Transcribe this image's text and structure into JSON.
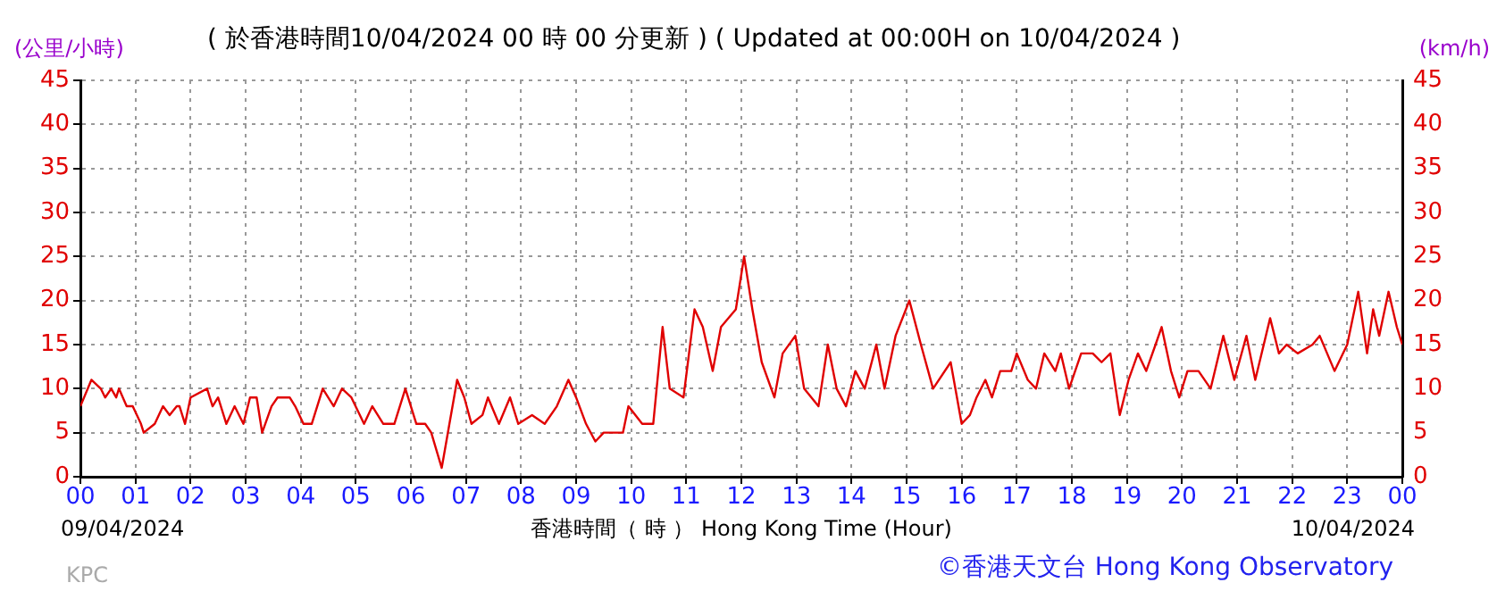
{
  "chart_data": {
    "type": "line",
    "title": "( 於香港時間10/04/2024 00 時 00 分更新 ) ( Updated at 00:00H on 10/04/2024 )",
    "xlabel": "香港時間（ 時 ） Hong Kong Time (Hour)",
    "ylabel": "(公里/小時)",
    "y2label": "(km/h)",
    "annotations": [
      "09/04/2024",
      "10/04/2024",
      "KPC",
      "©香港天文台 Hong Kong Observatory"
    ],
    "x": [
      0,
      0.2,
      0.37,
      0.45,
      0.56,
      0.65,
      0.7,
      0.84,
      0.95,
      1.1,
      1.15,
      1.35,
      1.5,
      1.62,
      1.75,
      1.8,
      1.9,
      2.0,
      2.3,
      2.4,
      2.5,
      2.65,
      2.8,
      2.96,
      3.08,
      3.2,
      3.3,
      3.47,
      3.58,
      3.8,
      3.9,
      4.05,
      4.2,
      4.4,
      4.6,
      4.75,
      4.92,
      5.15,
      5.3,
      5.5,
      5.7,
      5.9,
      6.0,
      6.1,
      6.26,
      6.37,
      6.56,
      6.7,
      6.84,
      6.97,
      7.1,
      7.3,
      7.4,
      7.6,
      7.8,
      7.95,
      8.2,
      8.43,
      8.65,
      8.86,
      9.0,
      9.18,
      9.35,
      9.5,
      9.85,
      9.95,
      10.2,
      10.4,
      10.57,
      10.7,
      10.95,
      11.15,
      11.3,
      11.48,
      11.63,
      11.9,
      12.05,
      12.2,
      12.37,
      12.6,
      12.75,
      12.98,
      13.14,
      13.4,
      13.57,
      13.73,
      13.9,
      14.07,
      14.24,
      14.45,
      14.6,
      14.8,
      15.05,
      15.26,
      15.48,
      15.8,
      16.0,
      16.15,
      16.27,
      16.43,
      16.55,
      16.7,
      16.9,
      17.0,
      17.2,
      17.35,
      17.5,
      17.7,
      17.8,
      17.95,
      18.17,
      18.38,
      18.54,
      18.7,
      18.87,
      19.03,
      19.2,
      19.35,
      19.52,
      19.63,
      19.8,
      19.95,
      20.1,
      20.3,
      20.52,
      20.75,
      20.95,
      21.17,
      21.33,
      21.6,
      21.76,
      21.9,
      22.1,
      22.37,
      22.5,
      22.77,
      23.0,
      23.2,
      23.36,
      23.47,
      23.58,
      23.75,
      23.9,
      24.0
    ],
    "series": [
      {
        "color": "#e00000",
        "values": [
          8,
          11,
          10,
          9,
          10,
          9,
          10,
          8,
          8,
          6,
          5,
          6,
          8,
          7,
          8,
          8,
          6,
          9,
          10,
          8,
          9,
          6,
          8,
          6,
          9,
          9,
          5,
          8,
          9,
          9,
          8,
          6,
          6,
          10,
          8,
          10,
          9,
          6,
          8,
          6,
          6,
          10,
          8,
          6,
          6,
          5,
          1,
          6,
          11,
          9,
          6,
          7,
          9,
          6,
          9,
          6,
          7,
          6,
          8,
          11,
          9,
          6,
          4,
          5,
          5,
          8,
          6,
          6,
          17,
          10,
          9,
          19,
          17,
          12,
          17,
          19,
          25,
          19,
          13,
          9,
          14,
          16,
          10,
          8,
          15,
          10,
          8,
          12,
          10,
          15,
          10,
          16,
          20,
          15,
          10,
          13,
          6,
          7,
          9,
          11,
          9,
          12,
          12,
          14,
          11,
          10,
          14,
          12,
          14,
          10,
          14,
          14,
          13,
          14,
          7,
          11,
          14,
          12,
          15,
          17,
          12,
          9,
          12,
          12,
          10,
          16,
          11,
          16,
          11,
          18,
          14,
          15,
          14,
          15,
          16,
          12,
          15,
          21,
          14,
          19,
          16,
          21,
          17,
          15
        ]
      }
    ],
    "xlim": [
      0,
      24
    ],
    "xticks": [
      {
        "value": 0,
        "label": "00"
      },
      {
        "value": 1,
        "label": "01"
      },
      {
        "value": 2,
        "label": "02"
      },
      {
        "value": 3,
        "label": "03"
      },
      {
        "value": 4,
        "label": "04"
      },
      {
        "value": 5,
        "label": "05"
      },
      {
        "value": 6,
        "label": "06"
      },
      {
        "value": 7,
        "label": "07"
      },
      {
        "value": 8,
        "label": "08"
      },
      {
        "value": 9,
        "label": "09"
      },
      {
        "value": 10,
        "label": "10"
      },
      {
        "value": 11,
        "label": "11"
      },
      {
        "value": 12,
        "label": "12"
      },
      {
        "value": 13,
        "label": "13"
      },
      {
        "value": 14,
        "label": "14"
      },
      {
        "value": 15,
        "label": "15"
      },
      {
        "value": 16,
        "label": "16"
      },
      {
        "value": 17,
        "label": "17"
      },
      {
        "value": 18,
        "label": "18"
      },
      {
        "value": 19,
        "label": "19"
      },
      {
        "value": 20,
        "label": "20"
      },
      {
        "value": 21,
        "label": "21"
      },
      {
        "value": 22,
        "label": "22"
      },
      {
        "value": 23,
        "label": "23"
      },
      {
        "value": 24,
        "label": "00"
      }
    ],
    "ylim": [
      0,
      45
    ],
    "yticks": [
      0,
      5,
      10,
      15,
      20,
      25,
      30,
      35,
      40,
      45
    ],
    "y2lim": [
      0,
      45
    ],
    "y2ticks": [
      0,
      5,
      10,
      15,
      20,
      25,
      30,
      35,
      40,
      45
    ],
    "grid": true,
    "legend": false,
    "marker": "none",
    "line_style": "solid"
  }
}
